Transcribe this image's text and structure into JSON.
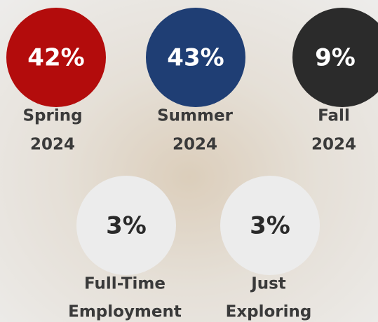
{
  "stats": [
    {
      "percent": "42%",
      "label": [
        "Spring",
        "2024"
      ]
    },
    {
      "percent": "43%",
      "label": [
        "Summer",
        "2024"
      ]
    },
    {
      "percent": "9%",
      "label": [
        "Fall",
        "2024"
      ]
    },
    {
      "percent": "3%",
      "label": [
        "Full-Time",
        "Employment"
      ]
    },
    {
      "percent": "3%",
      "label": [
        "Just",
        "Exploring"
      ]
    }
  ]
}
